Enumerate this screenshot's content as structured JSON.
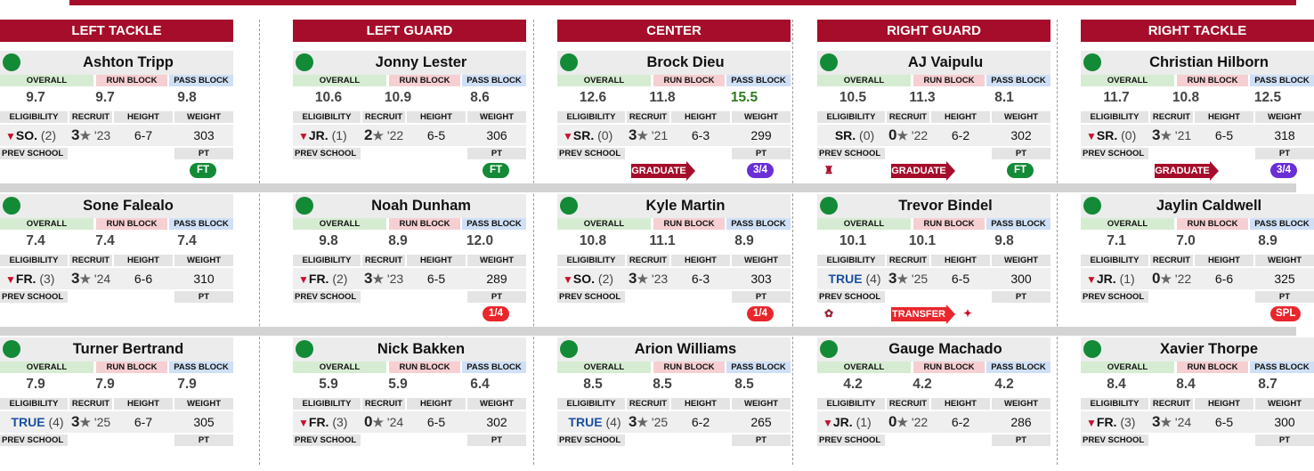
{
  "columns": [
    {
      "header": "LEFT TACKLE",
      "players": [
        {
          "name": "Ashton Tripp",
          "overall": "9.7",
          "run_block": "9.7",
          "pass_block": "9.8",
          "redshirt": true,
          "eligibility": "SO.",
          "years": "(2)",
          "recruit_stars": "3",
          "recruit_year": "'23",
          "height": "6-7",
          "weight": "303",
          "badge": {
            "text": "FT",
            "color": "green"
          }
        },
        {
          "name": "Sone Falealo",
          "overall": "7.4",
          "run_block": "7.4",
          "pass_block": "7.4",
          "redshirt": true,
          "eligibility": "FR.",
          "years": "(3)",
          "recruit_stars": "3",
          "recruit_year": "'24",
          "height": "6-6",
          "weight": "310",
          "badge": null
        },
        {
          "name": "Turner Bertrand",
          "overall": "7.9",
          "run_block": "7.9",
          "pass_block": "7.9",
          "redshirt": false,
          "eligibility": "TRUE",
          "years": "(4)",
          "recruit_stars": "3",
          "recruit_year": "'25",
          "height": "6-7",
          "weight": "305",
          "badge": null
        }
      ]
    },
    {
      "header": "LEFT GUARD",
      "players": [
        {
          "name": "Jonny Lester",
          "overall": "10.6",
          "run_block": "10.9",
          "pass_block": "8.6",
          "redshirt": true,
          "eligibility": "JR.",
          "years": "(1)",
          "recruit_stars": "2",
          "recruit_year": "'22",
          "height": "6-5",
          "weight": "306",
          "badge": {
            "text": "FT",
            "color": "green"
          }
        },
        {
          "name": "Noah Dunham",
          "overall": "9.8",
          "run_block": "8.9",
          "pass_block": "12.0",
          "redshirt": true,
          "eligibility": "FR.",
          "years": "(2)",
          "recruit_stars": "3",
          "recruit_year": "'23",
          "height": "6-5",
          "weight": "289",
          "badge": {
            "text": "1/4",
            "color": "red"
          }
        },
        {
          "name": "Nick Bakken",
          "overall": "5.9",
          "run_block": "5.9",
          "pass_block": "6.4",
          "redshirt": true,
          "eligibility": "FR.",
          "years": "(3)",
          "recruit_stars": "0",
          "recruit_year": "'24",
          "height": "6-5",
          "weight": "302",
          "badge": null
        }
      ]
    },
    {
      "header": "CENTER",
      "players": [
        {
          "name": "Brock Dieu",
          "overall": "12.6",
          "run_block": "11.8",
          "pass_block": "15.5",
          "pass_good": true,
          "redshirt": true,
          "eligibility": "SR.",
          "years": "(0)",
          "recruit_stars": "3",
          "recruit_year": "'21",
          "height": "6-3",
          "weight": "299",
          "badge": {
            "text": "3/4",
            "color": "purple"
          },
          "arrow": {
            "text": "GRADUATE",
            "type": "grad"
          }
        },
        {
          "name": "Kyle Martin",
          "overall": "10.8",
          "run_block": "11.1",
          "pass_block": "8.9",
          "redshirt": true,
          "eligibility": "SO.",
          "years": "(2)",
          "recruit_stars": "3",
          "recruit_year": "'23",
          "height": "6-3",
          "weight": "303",
          "badge": {
            "text": "1/4",
            "color": "red"
          }
        },
        {
          "name": "Arion Williams",
          "overall": "8.5",
          "run_block": "8.5",
          "pass_block": "8.5",
          "redshirt": false,
          "eligibility": "TRUE",
          "years": "(4)",
          "recruit_stars": "3",
          "recruit_year": "'25",
          "height": "6-2",
          "weight": "265",
          "badge": null
        }
      ]
    },
    {
      "header": "RIGHT GUARD",
      "players": [
        {
          "name": "AJ Vaipulu",
          "overall": "10.5",
          "run_block": "11.3",
          "pass_block": "8.1",
          "redshirt": false,
          "eligibility": "SR.",
          "years": "(0)",
          "recruit_stars": "0",
          "recruit_year": "'22",
          "height": "6-2",
          "weight": "302",
          "badge": {
            "text": "FT",
            "color": "green"
          },
          "arrow": {
            "text": "GRADUATE",
            "type": "grad"
          },
          "prev_logo": {
            "text": "♜",
            "color": "#a50d2a"
          }
        },
        {
          "name": "Trevor Bindel",
          "overall": "10.1",
          "run_block": "10.1",
          "pass_block": "9.8",
          "redshirt": false,
          "eligibility": "TRUE",
          "years": "(4)",
          "recruit_stars": "3",
          "recruit_year": "'25",
          "height": "6-5",
          "weight": "300",
          "badge": null,
          "arrow": {
            "text": "TRANSFER",
            "type": "transfer"
          },
          "prev_logo": {
            "text": "✿",
            "color": "#981e32"
          },
          "dest_logo": {
            "text": "✦",
            "color": "#c8102e"
          }
        },
        {
          "name": "Gauge Machado",
          "overall": "4.2",
          "run_block": "4.2",
          "pass_block": "4.2",
          "redshirt": true,
          "eligibility": "JR.",
          "years": "(1)",
          "recruit_stars": "0",
          "recruit_year": "'22",
          "height": "6-2",
          "weight": "286",
          "badge": null
        }
      ]
    },
    {
      "header": "RIGHT TACKLE",
      "players": [
        {
          "name": "Christian Hilborn",
          "overall": "11.7",
          "run_block": "10.8",
          "pass_block": "12.5",
          "redshirt": true,
          "eligibility": "SR.",
          "years": "(0)",
          "recruit_stars": "3",
          "recruit_year": "'21",
          "height": "6-5",
          "weight": "318",
          "badge": {
            "text": "3/4",
            "color": "purple"
          },
          "arrow": {
            "text": "GRADUATE",
            "type": "grad"
          }
        },
        {
          "name": "Jaylin Caldwell",
          "overall": "7.1",
          "run_block": "7.0",
          "pass_block": "8.9",
          "redshirt": true,
          "eligibility": "JR.",
          "years": "(1)",
          "recruit_stars": "0",
          "recruit_year": "'22",
          "height": "6-6",
          "weight": "325",
          "badge": {
            "text": "SPL",
            "color": "red"
          }
        },
        {
          "name": "Xavier Thorpe",
          "overall": "8.4",
          "run_block": "8.4",
          "pass_block": "8.7",
          "redshirt": true,
          "eligibility": "FR.",
          "years": "(3)",
          "recruit_stars": "3",
          "recruit_year": "'24",
          "height": "6-5",
          "weight": "300",
          "badge": null
        }
      ]
    }
  ],
  "labels": {
    "overall": "OVERALL",
    "run_block": "RUN BLOCK",
    "pass_block": "PASS BLOCK",
    "eligibility": "ELIGIBILITY",
    "recruit": "RECRUIT",
    "height": "HEIGHT",
    "weight": "WEIGHT",
    "prev_school": "PREV SCHOOL",
    "pt": "PT"
  },
  "colors": {
    "brand": "#a50d2a",
    "status_dot": "#138a36",
    "ft": "#138a36",
    "red": "#e8262b",
    "purple": "#6a2fd6"
  },
  "icons": {
    "redshirt": "👕",
    "star": "★",
    "status": "status-dot-icon"
  }
}
